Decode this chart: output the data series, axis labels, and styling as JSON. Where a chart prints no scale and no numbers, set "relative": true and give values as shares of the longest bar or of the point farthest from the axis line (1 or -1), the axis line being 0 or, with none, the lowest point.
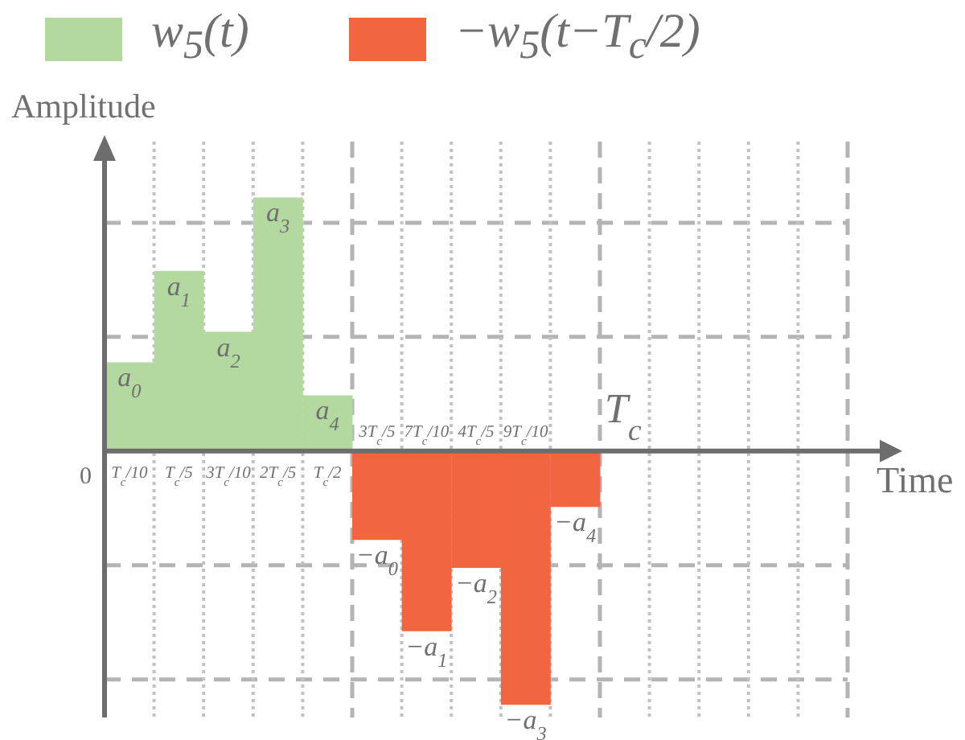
{
  "chart_data": {
    "type": "bar",
    "relative": true,
    "stacked": true,
    "xlabel": "Time",
    "ylabel": "Amplitude",
    "categories": [
      "T$_{c}$/10",
      "T$_{c}$/5",
      "3T$_{c}$/10",
      "2T$_{c}$/5",
      "T$_{c}$/2",
      "3T$_{c}$/5",
      "7T$_{c}$/10",
      "4T$_{c}$/5",
      "9T$_{c}$/10",
      null,
      null,
      null,
      null,
      null,
      null
    ],
    "series": [
      {
        "name": "w$_{5}$(t)",
        "color": "#b3d8a0",
        "values": [
          0.35,
          0.71,
          0.47,
          1,
          0.22,
          null,
          null,
          null,
          null,
          null,
          null,
          null,
          null,
          null,
          null
        ]
      },
      {
        "name": "−w$_{5}$(t−T$_{c}$/2)",
        "color": "#f26541",
        "values": [
          null,
          null,
          null,
          null,
          null,
          -0.35,
          -0.71,
          -0.46,
          -1,
          -0.22,
          null,
          null,
          null,
          null,
          null
        ]
      }
    ],
    "annotations": [
      "0",
      "T$_{c}$",
      {
        "text": "a$_{0}$",
        "x": "T$_{c}$/10",
        "y": 0.35
      },
      {
        "text": "a$_{1}$",
        "x": "T$_{c}$/5",
        "y": 0.71
      },
      {
        "text": "a$_{2}$",
        "x": "3T$_{c}$/10",
        "y": 0.47
      },
      {
        "text": "a$_{3}$",
        "x": "2T$_{c}$/5",
        "y": 1
      },
      {
        "text": "a$_{4}$",
        "x": "T$_{c}$/2",
        "y": 0.22
      },
      {
        "text": "−a$_{0}$",
        "x": "3T$_{c}$/5",
        "y": -0.35
      },
      {
        "text": "−a$_{1}$",
        "x": "7T$_{c}$/10",
        "y": -0.71
      },
      {
        "text": "−a$_{2}$",
        "x": "4T$_{c}$/5",
        "y": -0.46
      },
      {
        "text": "−a$_{3}$",
        "x": "9T$_{c}$/10",
        "y": -1
      },
      {
        "text": "−a$_{4}$",
        "y": -0.22
      }
    ],
    "grid": true,
    "legend": "top"
  }
}
